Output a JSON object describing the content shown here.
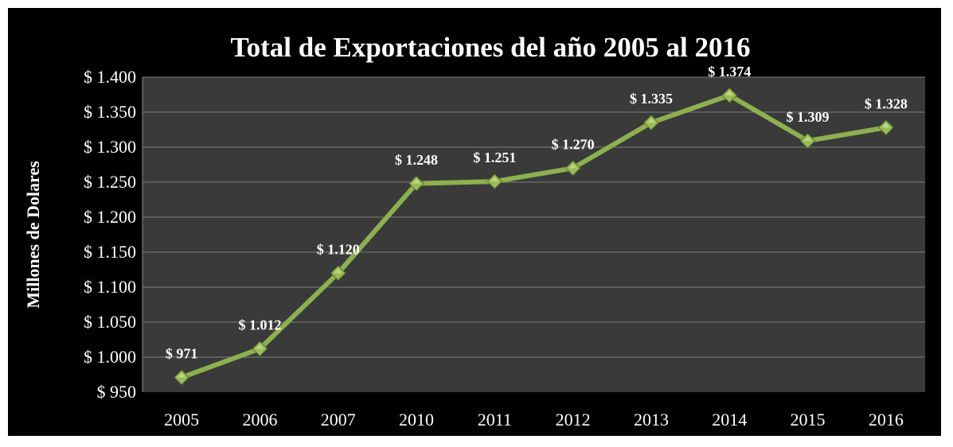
{
  "chart_data": {
    "type": "line",
    "title": "Total de Exportaciones del año 2005 al 2016",
    "ylabel": "Millones de Dolares",
    "xlabel": "",
    "categories": [
      "2005",
      "2006",
      "2007",
      "2010",
      "2011",
      "2012",
      "2013",
      "2014",
      "2015",
      "2016"
    ],
    "series": [
      {
        "values": [
          971,
          1012,
          1120,
          1248,
          1251,
          1270,
          1335,
          1374,
          1309,
          1328
        ]
      }
    ],
    "data_labels": [
      "$ 971",
      "$ 1.012",
      "$ 1.120",
      "$ 1.248",
      "$ 1.251",
      "$ 1.270",
      "$ 1.335",
      "$ 1.374",
      "$ 1.309",
      "$ 1.328"
    ],
    "y_ticks": [
      950,
      1000,
      1050,
      1100,
      1150,
      1200,
      1250,
      1300,
      1350,
      1400
    ],
    "y_tick_labels": [
      "$ 950",
      "$ 1.000",
      "$ 1.050",
      "$ 1.100",
      "$ 1.150",
      "$ 1.200",
      "$ 1.250",
      "$ 1.300",
      "$ 1.350",
      "$ 1.400"
    ],
    "ylim": [
      950,
      1400
    ],
    "grid": true,
    "legend": "none",
    "colors": {
      "background": "#000000",
      "plot_area": "#3a3a3a",
      "gridline": "#7f7f7f",
      "line": "#8db050",
      "marker": "#9bbb59",
      "marker_highlight": "#c5dd8c",
      "text": "#ffffff"
    },
    "marker": "diamond"
  }
}
